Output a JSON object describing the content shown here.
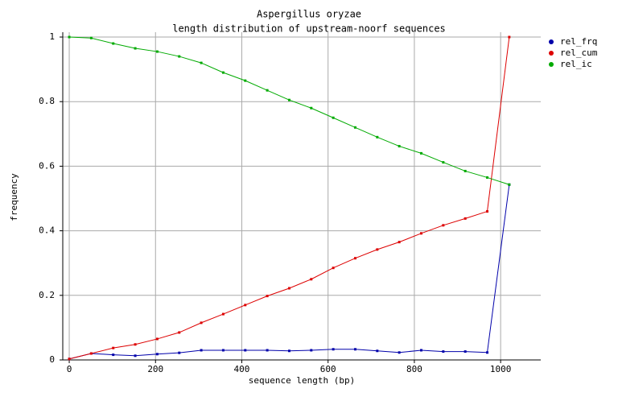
{
  "chart_data": {
    "type": "line",
    "title": "Aspergillus oryzae",
    "subtitle": "length distribution of upstream-noorf sequences",
    "x_label": "sequence length (bp)",
    "y_label": "frequency",
    "x": [
      0,
      51,
      102,
      153,
      204,
      255,
      306,
      357,
      408,
      459,
      510,
      561,
      612,
      663,
      714,
      765,
      816,
      867,
      918,
      969,
      1020
    ],
    "series": [
      {
        "name": "rel_frq",
        "color": "#0000aa",
        "values": [
          0.003,
          0.02,
          0.016,
          0.013,
          0.018,
          0.022,
          0.03,
          0.03,
          0.03,
          0.03,
          0.028,
          0.03,
          0.033,
          0.033,
          0.028,
          0.023,
          0.03,
          0.026,
          0.026,
          0.023,
          0.543
        ]
      },
      {
        "name": "rel_cum",
        "color": "#dd0000",
        "values": [
          0.003,
          0.02,
          0.037,
          0.048,
          0.065,
          0.085,
          0.115,
          0.142,
          0.17,
          0.198,
          0.222,
          0.25,
          0.285,
          0.315,
          0.342,
          0.365,
          0.392,
          0.417,
          0.438,
          0.46,
          1.0
        ]
      },
      {
        "name": "rel_ic",
        "color": "#00aa00",
        "values": [
          1.0,
          0.997,
          0.98,
          0.965,
          0.955,
          0.94,
          0.92,
          0.89,
          0.865,
          0.835,
          0.805,
          0.78,
          0.75,
          0.72,
          0.69,
          0.662,
          0.64,
          0.612,
          0.585,
          0.565,
          0.543
        ]
      }
    ],
    "xlim": [
      -15,
      1093
    ],
    "ylim": [
      0,
      1.015
    ],
    "xticks": [
      0,
      200,
      400,
      600,
      800,
      1000
    ],
    "yticks": [
      0,
      0.2,
      0.4,
      0.6,
      0.8,
      1
    ],
    "grid": true,
    "legend": "upper right"
  }
}
